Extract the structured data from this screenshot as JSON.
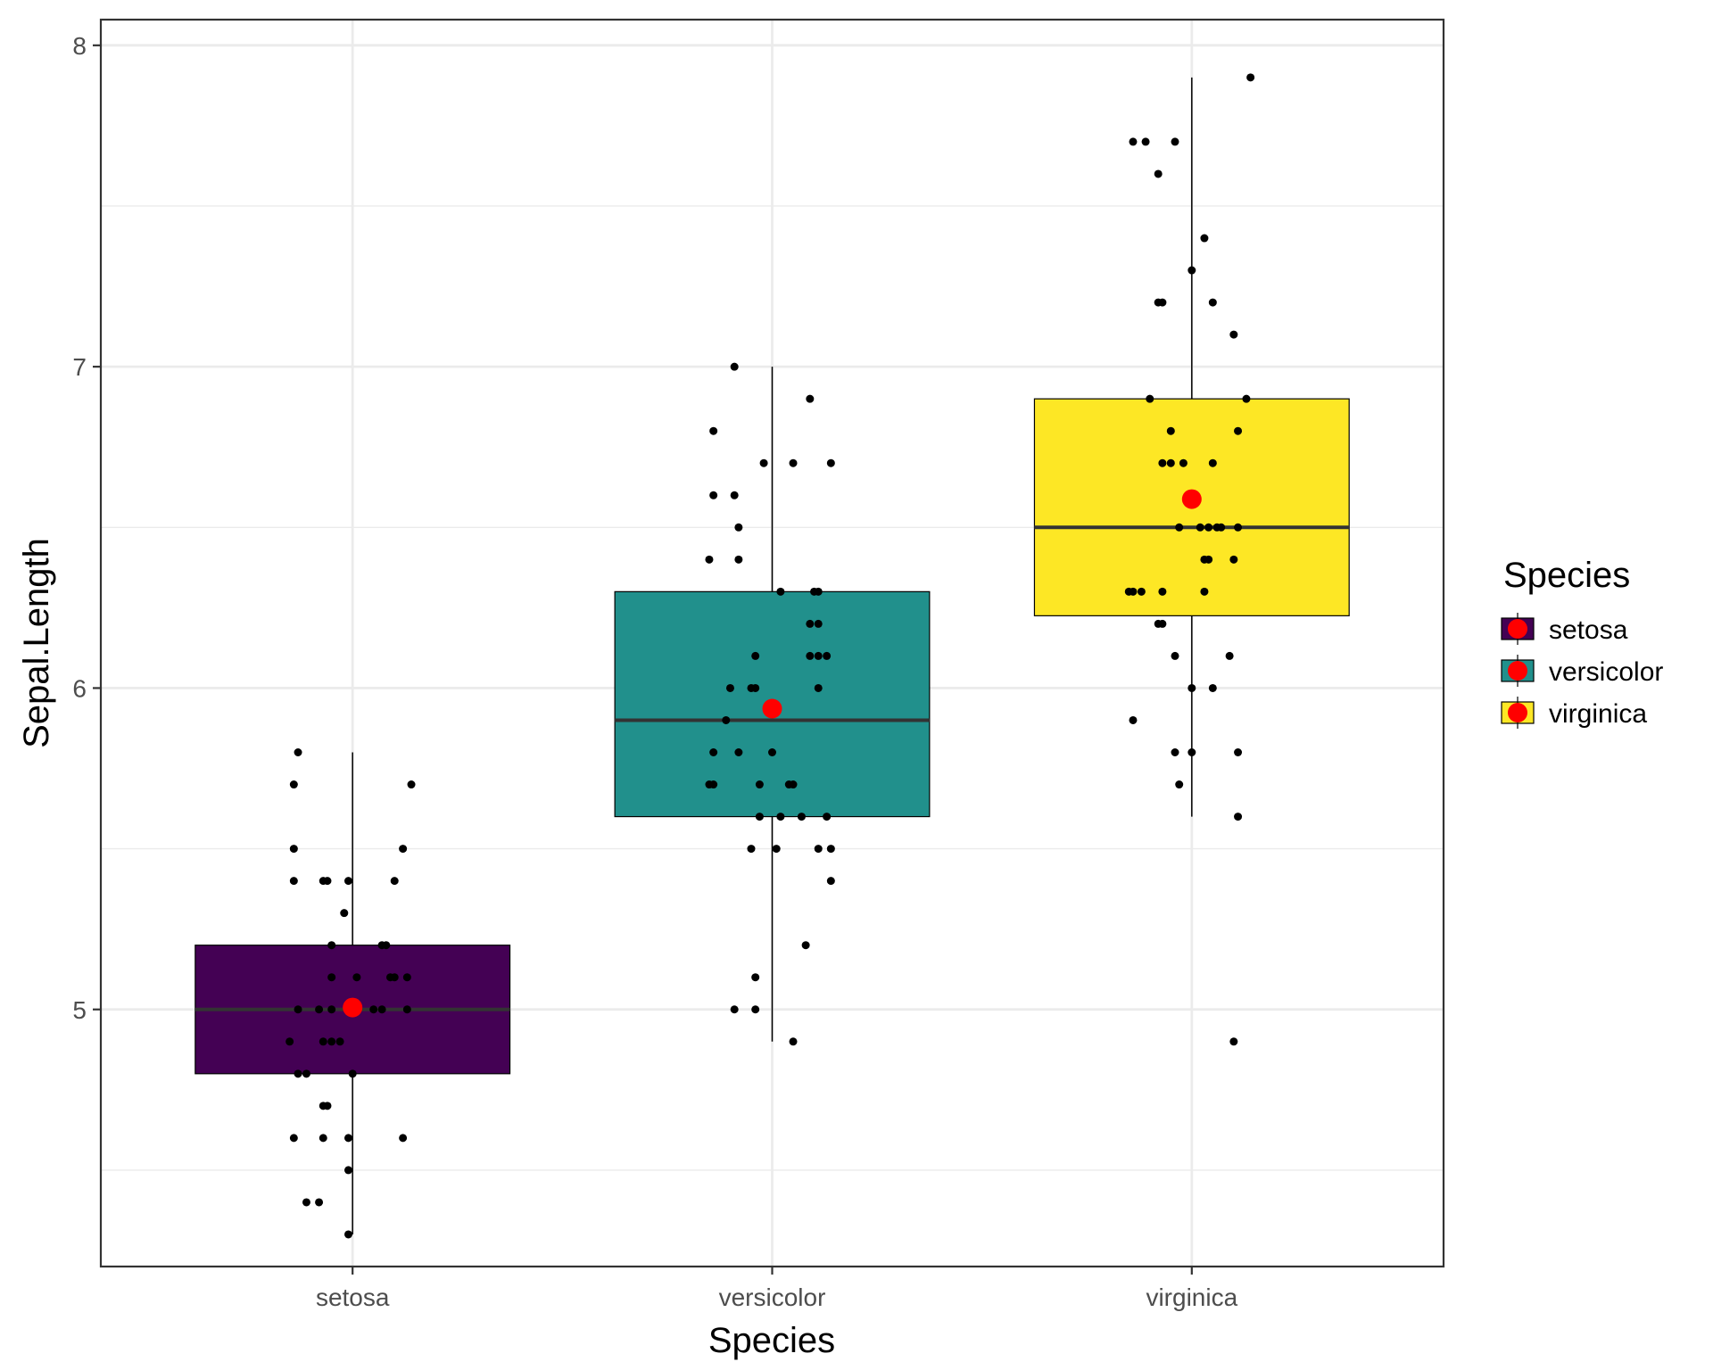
{
  "chart_data": {
    "type": "boxplot",
    "title": "",
    "xlabel": "Species",
    "ylabel": "Sepal.Length",
    "categories": [
      "setosa",
      "versicolor",
      "virginica"
    ],
    "ylim": [
      4.2,
      8.08
    ],
    "yticks": [
      5,
      6,
      7,
      8
    ],
    "ytick_labels": [
      "5",
      "6",
      "7",
      "8"
    ],
    "grid": true,
    "legend": {
      "title": "Species",
      "position": "right",
      "items": [
        {
          "label": "setosa",
          "color": "#440154"
        },
        {
          "label": "versicolor",
          "color": "#21908C"
        },
        {
          "label": "virginica",
          "color": "#FDE725"
        }
      ]
    },
    "mean_color": "#FF0000",
    "boxes": [
      {
        "category": "setosa",
        "color": "#440154",
        "q1": 4.8,
        "median": 5.0,
        "q3": 5.2,
        "whisker_low": 4.3,
        "whisker_high": 5.8,
        "mean": 5.006
      },
      {
        "category": "versicolor",
        "color": "#21908C",
        "q1": 5.6,
        "median": 5.9,
        "q3": 6.3,
        "whisker_low": 4.9,
        "whisker_high": 7.0,
        "mean": 5.936
      },
      {
        "category": "virginica",
        "color": "#FDE725",
        "q1": 6.225,
        "median": 6.5,
        "q3": 6.9,
        "whisker_low": 5.6,
        "whisker_high": 7.9,
        "mean": 6.588
      }
    ],
    "points": [
      [
        [
          -0.13,
          5.8
        ],
        [
          -0.14,
          5.7
        ],
        [
          0.14,
          5.7
        ],
        [
          -0.14,
          5.5
        ],
        [
          0.12,
          5.5
        ],
        [
          -0.14,
          5.4
        ],
        [
          -0.07,
          5.4
        ],
        [
          -0.06,
          5.4
        ],
        [
          -0.01,
          5.4
        ],
        [
          0.1,
          5.4
        ],
        [
          -0.02,
          5.3
        ],
        [
          -0.05,
          5.2
        ],
        [
          0.07,
          5.2
        ],
        [
          0.08,
          5.2
        ],
        [
          -0.05,
          5.1
        ],
        [
          0.01,
          5.1
        ],
        [
          0.09,
          5.1
        ],
        [
          0.1,
          5.1
        ],
        [
          0.13,
          5.1
        ],
        [
          -0.13,
          5.0
        ],
        [
          -0.08,
          5.0
        ],
        [
          -0.05,
          5.0
        ],
        [
          0.05,
          5.0
        ],
        [
          0.07,
          5.0
        ],
        [
          0.13,
          5.0
        ],
        [
          -0.15,
          4.9
        ],
        [
          -0.07,
          4.9
        ],
        [
          -0.05,
          4.9
        ],
        [
          -0.03,
          4.9
        ],
        [
          -0.13,
          4.8
        ],
        [
          -0.11,
          4.8
        ],
        [
          0.0,
          4.8
        ],
        [
          -0.07,
          4.7
        ],
        [
          -0.06,
          4.7
        ],
        [
          -0.14,
          4.6
        ],
        [
          -0.07,
          4.6
        ],
        [
          -0.01,
          4.6
        ],
        [
          0.12,
          4.6
        ],
        [
          -0.01,
          4.5
        ],
        [
          -0.11,
          4.4
        ],
        [
          -0.08,
          4.4
        ],
        [
          -0.01,
          4.3
        ]
      ],
      [
        [
          -0.09,
          7.0
        ],
        [
          0.09,
          6.9
        ],
        [
          -0.14,
          6.8
        ],
        [
          -0.02,
          6.7
        ],
        [
          0.05,
          6.7
        ],
        [
          0.14,
          6.7
        ],
        [
          -0.14,
          6.6
        ],
        [
          -0.09,
          6.6
        ],
        [
          -0.08,
          6.5
        ],
        [
          -0.15,
          6.4
        ],
        [
          -0.08,
          6.4
        ],
        [
          0.02,
          6.3
        ],
        [
          0.1,
          6.3
        ],
        [
          0.11,
          6.3
        ],
        [
          0.09,
          6.2
        ],
        [
          0.11,
          6.2
        ],
        [
          -0.04,
          6.1
        ],
        [
          0.09,
          6.1
        ],
        [
          0.11,
          6.1
        ],
        [
          0.13,
          6.1
        ],
        [
          -0.1,
          6.0
        ],
        [
          -0.05,
          6.0
        ],
        [
          -0.04,
          6.0
        ],
        [
          0.11,
          6.0
        ],
        [
          -0.11,
          5.9
        ],
        [
          -0.14,
          5.8
        ],
        [
          -0.08,
          5.8
        ],
        [
          0.0,
          5.8
        ],
        [
          -0.15,
          5.7
        ],
        [
          -0.14,
          5.7
        ],
        [
          -0.03,
          5.7
        ],
        [
          0.04,
          5.7
        ],
        [
          0.05,
          5.7
        ],
        [
          -0.03,
          5.6
        ],
        [
          0.02,
          5.6
        ],
        [
          0.07,
          5.6
        ],
        [
          0.13,
          5.6
        ],
        [
          -0.05,
          5.5
        ],
        [
          0.01,
          5.5
        ],
        [
          0.11,
          5.5
        ],
        [
          0.14,
          5.5
        ],
        [
          0.14,
          5.4
        ],
        [
          0.08,
          5.2
        ],
        [
          -0.04,
          5.1
        ],
        [
          -0.09,
          5.0
        ],
        [
          -0.04,
          5.0
        ],
        [
          0.05,
          4.9
        ]
      ],
      [
        [
          0.14,
          7.9
        ],
        [
          -0.14,
          7.7
        ],
        [
          -0.11,
          7.7
        ],
        [
          -0.04,
          7.7
        ],
        [
          -0.08,
          7.6
        ],
        [
          0.03,
          7.4
        ],
        [
          0.0,
          7.3
        ],
        [
          -0.08,
          7.2
        ],
        [
          -0.07,
          7.2
        ],
        [
          0.05,
          7.2
        ],
        [
          0.1,
          7.1
        ],
        [
          -0.1,
          6.9
        ],
        [
          0.13,
          6.9
        ],
        [
          -0.05,
          6.8
        ],
        [
          0.11,
          6.8
        ],
        [
          -0.07,
          6.7
        ],
        [
          -0.05,
          6.7
        ],
        [
          -0.02,
          6.7
        ],
        [
          0.05,
          6.7
        ],
        [
          -0.03,
          6.5
        ],
        [
          0.02,
          6.5
        ],
        [
          0.04,
          6.5
        ],
        [
          0.06,
          6.5
        ],
        [
          0.07,
          6.5
        ],
        [
          0.11,
          6.5
        ],
        [
          0.03,
          6.4
        ],
        [
          0.04,
          6.4
        ],
        [
          0.1,
          6.4
        ],
        [
          -0.15,
          6.3
        ],
        [
          -0.14,
          6.3
        ],
        [
          -0.12,
          6.3
        ],
        [
          -0.07,
          6.3
        ],
        [
          0.03,
          6.3
        ],
        [
          -0.08,
          6.2
        ],
        [
          -0.07,
          6.2
        ],
        [
          -0.04,
          6.1
        ],
        [
          0.09,
          6.1
        ],
        [
          0.0,
          6.0
        ],
        [
          0.05,
          6.0
        ],
        [
          -0.14,
          5.9
        ],
        [
          -0.04,
          5.8
        ],
        [
          0.0,
          5.8
        ],
        [
          0.11,
          5.8
        ],
        [
          -0.03,
          5.7
        ],
        [
          0.11,
          5.6
        ],
        [
          0.1,
          4.9
        ]
      ]
    ]
  }
}
